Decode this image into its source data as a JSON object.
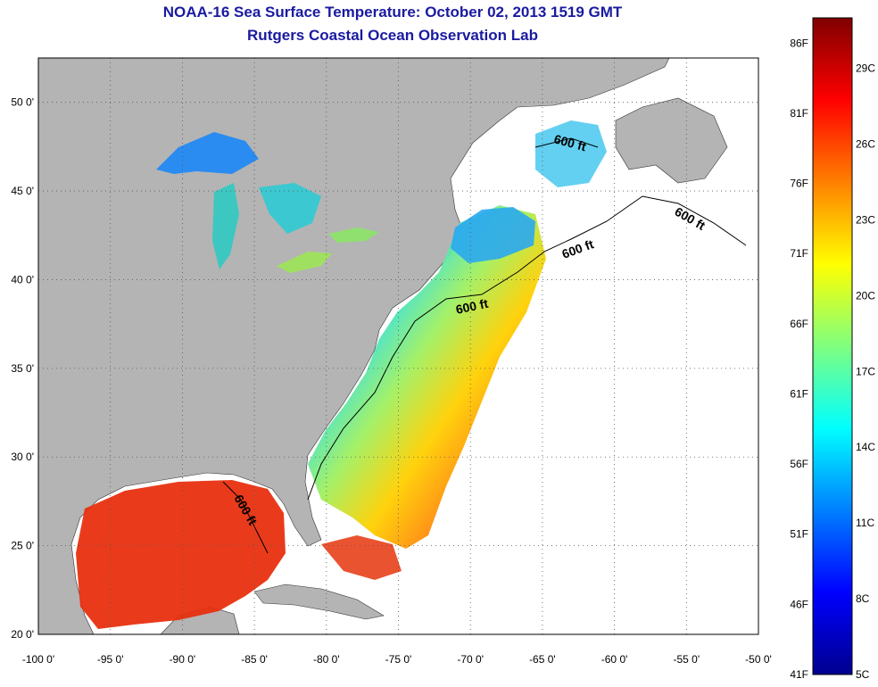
{
  "header": {
    "title": "NOAA-16 Sea Surface Temperature:  October 02, 2013 1519 GMT",
    "subtitle": "Rutgers Coastal Ocean Observation Lab"
  },
  "map": {
    "lon_range": [
      -100,
      -50
    ],
    "lat_range": [
      20,
      52.5
    ],
    "lon_ticks": [
      {
        "value": -100,
        "label": "-100 0'"
      },
      {
        "value": -95,
        "label": "-95 0'"
      },
      {
        "value": -90,
        "label": "-90 0'"
      },
      {
        "value": -85,
        "label": "-85 0'"
      },
      {
        "value": -80,
        "label": "-80 0'"
      },
      {
        "value": -75,
        "label": "-75 0'"
      },
      {
        "value": -70,
        "label": "-70 0'"
      },
      {
        "value": -65,
        "label": "-65 0'"
      },
      {
        "value": -60,
        "label": "-60 0'"
      },
      {
        "value": -55,
        "label": "-55 0'"
      },
      {
        "value": -50,
        "label": "-50 0'"
      }
    ],
    "lat_ticks": [
      {
        "value": 50,
        "label": "50 0'"
      },
      {
        "value": 45,
        "label": "45 0'"
      },
      {
        "value": 40,
        "label": "40 0'"
      },
      {
        "value": 35,
        "label": "35 0'"
      },
      {
        "value": 30,
        "label": "30 0'"
      },
      {
        "value": 25,
        "label": "25 0'"
      },
      {
        "value": 20,
        "label": "20 0'"
      }
    ],
    "contour_label": "600 ft",
    "land_color": "#b4b4b4",
    "ocean_nodata_color": "#ffffff",
    "gridlines": "dotted"
  },
  "colorbar": {
    "range_c": [
      5,
      31
    ],
    "fahrenheit_labels": [
      "86F",
      "81F",
      "76F",
      "71F",
      "66F",
      "61F",
      "56F",
      "51F",
      "46F",
      "41F"
    ],
    "celsius_labels": [
      "29C",
      "26C",
      "23C",
      "20C",
      "17C",
      "14C",
      "11C",
      "8C",
      "5C"
    ],
    "colormap": "jet"
  }
}
